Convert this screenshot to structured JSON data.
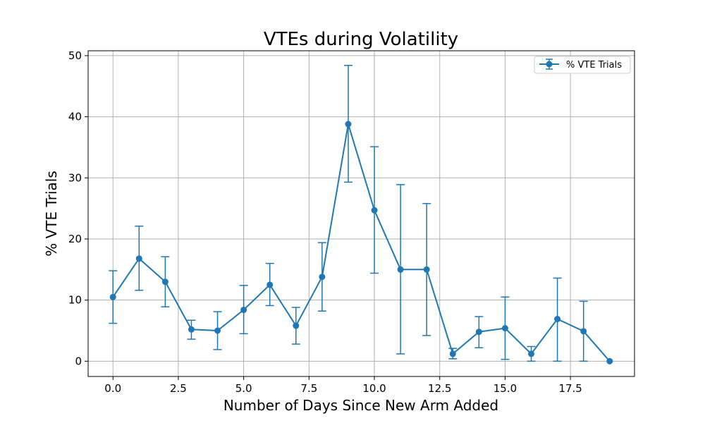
{
  "chart_data": {
    "type": "line",
    "title": "VTEs during Volatility",
    "xlabel": "Number of Days Since New Arm Added",
    "ylabel": "% VTE Trials",
    "xlim": [
      -0.95,
      19.95
    ],
    "ylim": [
      -2.5,
      50.8
    ],
    "x_ticks": [
      0.0,
      2.5,
      5.0,
      7.5,
      10.0,
      12.5,
      15.0,
      17.5
    ],
    "x_tick_labels": [
      "0.0",
      "2.5",
      "5.0",
      "7.5",
      "10.0",
      "12.5",
      "15.0",
      "17.5"
    ],
    "y_ticks": [
      0,
      10,
      20,
      30,
      40,
      50
    ],
    "y_tick_labels": [
      "0",
      "10",
      "20",
      "30",
      "40",
      "50"
    ],
    "grid": true,
    "legend_position": "top-right",
    "color": "#1f77b4",
    "series": [
      {
        "name": "% VTE Trials",
        "x": [
          0,
          1,
          2,
          3,
          4,
          5,
          6,
          7,
          8,
          9,
          10,
          11,
          12,
          13,
          14,
          15,
          16,
          17,
          18,
          19
        ],
        "y": [
          10.5,
          16.8,
          13.0,
          5.2,
          5.0,
          8.4,
          12.5,
          5.8,
          13.8,
          38.8,
          24.7,
          15.0,
          15.0,
          1.2,
          4.8,
          5.4,
          1.2,
          6.9,
          4.9,
          0.0
        ],
        "error_low": [
          6.2,
          11.6,
          8.9,
          3.6,
          1.9,
          4.5,
          9.1,
          2.8,
          8.2,
          29.3,
          14.4,
          1.2,
          4.2,
          0.4,
          2.2,
          0.3,
          0.0,
          0.0,
          0.0,
          0.0
        ],
        "error_high": [
          14.8,
          22.1,
          17.1,
          6.7,
          8.1,
          12.4,
          16.0,
          8.8,
          19.4,
          48.4,
          35.1,
          28.9,
          25.8,
          2.1,
          7.3,
          10.5,
          2.4,
          13.6,
          9.8,
          0.0
        ]
      }
    ]
  }
}
